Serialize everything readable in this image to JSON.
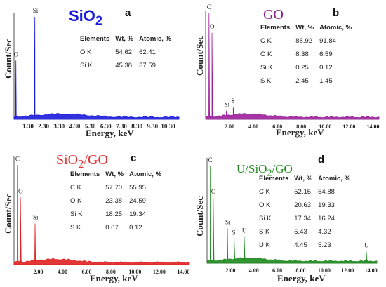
{
  "chart_data": [
    {
      "type": "line",
      "panel": "a",
      "sample": "SiO",
      "sample_sub": "2",
      "sample_color": "#1a1adb",
      "line_color": "#1a1adb",
      "xlabel": "Energy, keV",
      "ylabel": "Count/Sec",
      "xlim": [
        0.4,
        11.0
      ],
      "tick_values": [
        1.3,
        2.3,
        3.3,
        4.3,
        5.3,
        6.3,
        7.3,
        8.3,
        9.3,
        10.3
      ],
      "tick_labels": [
        "1.30",
        "2.30",
        "3.30",
        "4.30",
        "5.30",
        "6.30",
        "7.30",
        "8.30",
        "9.30",
        "10.30"
      ],
      "peaks": [
        {
          "element": "O",
          "energy": 0.52,
          "height": 0.55
        },
        {
          "element": "Si",
          "energy": 1.74,
          "height": 0.96
        }
      ],
      "table": {
        "headers": [
          "Elements",
          "Wt, %",
          "Atomic, %"
        ],
        "rows": [
          [
            "O K",
            "54.62",
            "62.41"
          ],
          [
            "Si K",
            "45.38",
            "37.59"
          ]
        ]
      }
    },
    {
      "type": "line",
      "panel": "b",
      "sample": "GO",
      "sample_sub": "",
      "sample_color": "#8b1e8b",
      "line_color": "#9b1e9b",
      "xlabel": "Energy, keV",
      "ylabel": "Count/Sec",
      "xlim": [
        0.0,
        14.5
      ],
      "tick_values": [
        2,
        4,
        6,
        8,
        10,
        12,
        14
      ],
      "tick_labels": [
        "2.00",
        "4.00",
        "6.00",
        "8.00",
        "10.00",
        "12.00",
        "14.00"
      ],
      "peaks": [
        {
          "element": "C",
          "energy": 0.28,
          "height": 0.98
        },
        {
          "element": "O",
          "energy": 0.53,
          "height": 0.8
        },
        {
          "element": "Si",
          "energy": 1.74,
          "height": 0.08
        },
        {
          "element": "S",
          "energy": 2.31,
          "height": 0.11
        }
      ],
      "table": {
        "headers": [
          "Elements",
          "Wt, %",
          "Atomic, %"
        ],
        "rows": [
          [
            "C K",
            "88.92",
            "91.84"
          ],
          [
            "O K",
            "8.38",
            "6.59"
          ],
          [
            "Si K",
            "0.25",
            "0.12"
          ],
          [
            "S K",
            "2.45",
            "1.45"
          ]
        ]
      }
    },
    {
      "type": "line",
      "panel": "c",
      "sample": "SiO",
      "sample_sub": "2",
      "sample_suffix": "/GO",
      "sample_color": "#e53030",
      "line_color": "#e02020",
      "xlabel": "Energy, keV",
      "ylabel": "Count/Sec",
      "xlim": [
        0.0,
        14.5
      ],
      "tick_values": [
        2,
        4,
        6,
        8,
        10,
        12,
        14
      ],
      "tick_labels": [
        "2.00",
        "4.00",
        "6.00",
        "8.00",
        "10.00",
        "12.00",
        "14.00"
      ],
      "peaks": [
        {
          "element": "C",
          "energy": 0.28,
          "height": 0.92
        },
        {
          "element": "O",
          "energy": 0.53,
          "height": 0.62
        },
        {
          "element": "Si",
          "energy": 1.74,
          "height": 0.38
        }
      ],
      "table": {
        "headers": [
          "Elements",
          "Wt, %",
          "Atomic, %"
        ],
        "rows": [
          [
            "C K",
            "57.70",
            "55.95"
          ],
          [
            "O K",
            "23.38",
            "24.59"
          ],
          [
            "Si K",
            "18.25",
            "19.34"
          ],
          [
            "S K",
            "0.67",
            "0.12"
          ]
        ]
      }
    },
    {
      "type": "line",
      "panel": "d",
      "sample": "U/SiO",
      "sample_sub": "2",
      "sample_suffix": "/GO",
      "sample_color": "#1e8a1e",
      "line_color": "#1e8a1e",
      "xlabel": "Energy, keV",
      "ylabel": "Count/Sec",
      "xlim": [
        0.0,
        14.5
      ],
      "tick_values": [
        2,
        4,
        6,
        8,
        10,
        12,
        14
      ],
      "tick_labels": [
        "2.00",
        "4.00",
        "6.00",
        "8.00",
        "10.00",
        "12.00",
        "14.00"
      ],
      "peaks": [
        {
          "element": "C",
          "energy": 0.28,
          "height": 0.92
        },
        {
          "element": "O",
          "energy": 0.53,
          "height": 0.62
        },
        {
          "element": "Si",
          "energy": 1.74,
          "height": 0.33
        },
        {
          "element": "S",
          "energy": 2.31,
          "height": 0.23
        },
        {
          "element": "U",
          "energy": 3.17,
          "height": 0.25
        },
        {
          "element": "U",
          "energy": 13.6,
          "height": 0.11
        }
      ],
      "table": {
        "headers": [
          "Elements",
          "Wt, %",
          "Atomic, %"
        ],
        "rows": [
          [
            "C K",
            "52.15",
            "54.88"
          ],
          [
            "O K",
            "20.63",
            "19.33"
          ],
          [
            "Si K",
            "17.34",
            "16.24"
          ],
          [
            "S K",
            "5.43",
            "4.32"
          ],
          [
            "U K",
            "4.45",
            "5.23"
          ]
        ]
      }
    }
  ]
}
